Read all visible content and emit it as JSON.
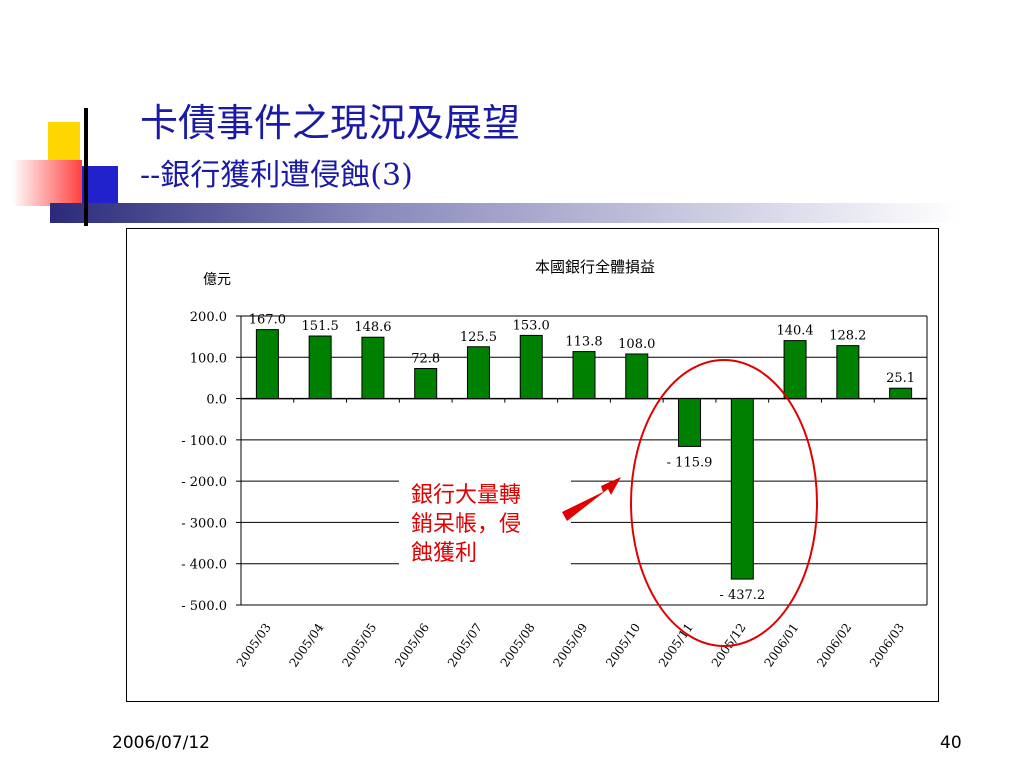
{
  "slide": {
    "title_line1": "卡債事件之現況及展望",
    "title_line2": "--銀行獲利遭侵蝕(3)",
    "footer_date": "2006/07/12",
    "page_number": "40"
  },
  "colors": {
    "title": "#1a1aa6",
    "bar": "#008000",
    "annotation": "#e00000",
    "deco_yellow": "#ffd700",
    "deco_blue": "#2222cc",
    "deco_red": "#ff4040"
  },
  "chart_data": {
    "type": "bar",
    "title": "本國銀行全體損益",
    "ylabel": "億元",
    "xlabel": "",
    "categories": [
      "2005/03",
      "2005/04",
      "2005/05",
      "2005/06",
      "2005/07",
      "2005/08",
      "2005/09",
      "2005/10",
      "2005/11",
      "2005/12",
      "2006/01",
      "2006/02",
      "2006/03"
    ],
    "values": [
      167.0,
      151.5,
      148.6,
      72.8,
      125.5,
      153.0,
      113.8,
      108.0,
      -115.9,
      -437.2,
      140.4,
      128.2,
      25.1
    ],
    "data_labels": [
      "167.0",
      "151.5",
      "148.6",
      "72.8",
      "125.5",
      "153.0",
      "113.8",
      "108.0",
      "- 115.9",
      "- 437.2",
      "140.4",
      "128.2",
      "25.1"
    ],
    "ylim": [
      -500,
      200
    ],
    "yticks": [
      200,
      100,
      0,
      -100,
      -200,
      -300,
      -400,
      -500
    ],
    "ytick_labels": [
      "200.0",
      "100.0",
      "0.0",
      "- 100.0",
      "- 200.0",
      "- 300.0",
      "- 400.0",
      "- 500.0"
    ],
    "grid": true,
    "legend": "none",
    "annotation": {
      "lines": [
        "銀行大量轉",
        "銷呆帳，侵",
        "蝕獲利"
      ],
      "highlight": [
        "2005/11",
        "2005/12"
      ]
    }
  }
}
